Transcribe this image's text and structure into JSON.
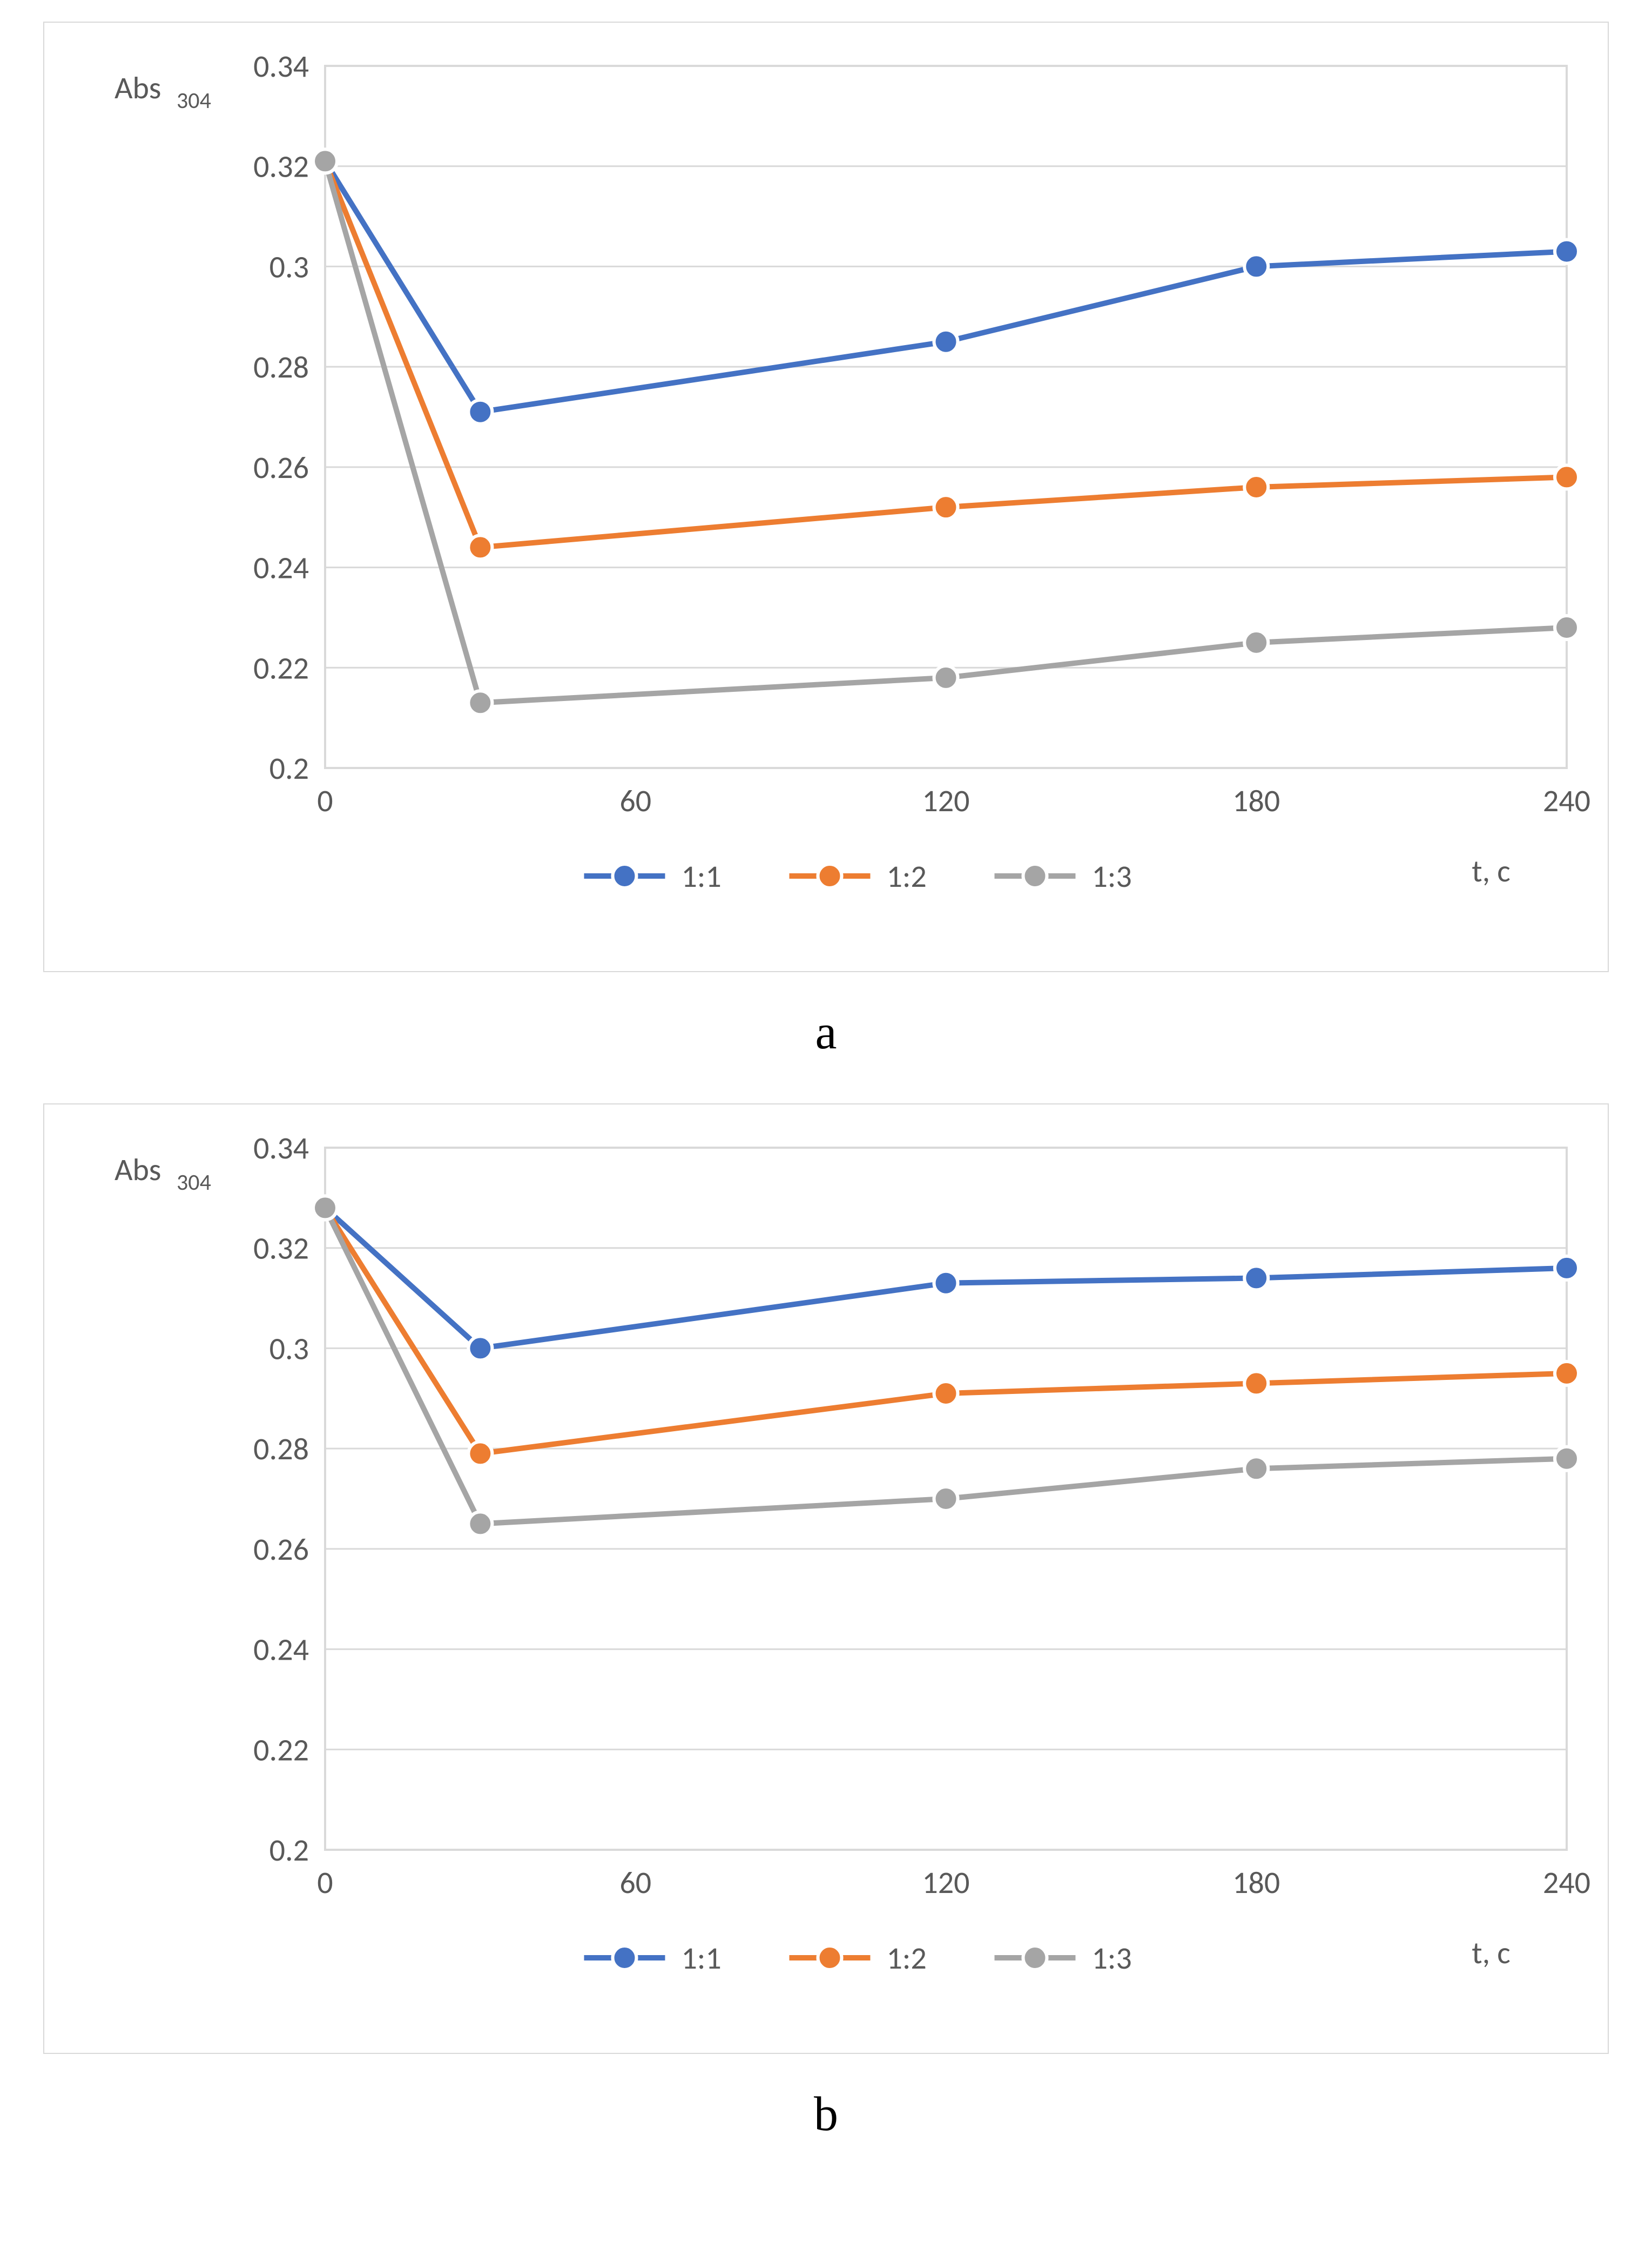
{
  "page": {
    "background_color": "#ffffff",
    "panel_border_color": "#d9d9d9",
    "text_color": "#595959",
    "grid_color": "#d9d9d9",
    "font_family": "Calibri, Arial, sans-serif",
    "panel_label_font": "Times New Roman, serif",
    "panel_label_fontsize_pt": 28
  },
  "chart_a": {
    "type": "line",
    "panel_label": "a",
    "y_axis_title": "Abs",
    "y_axis_title_sub": "304",
    "x_axis_title": "t, c",
    "xlim": [
      0,
      240
    ],
    "ylim": [
      0.2,
      0.34
    ],
    "xticks": [
      0,
      60,
      120,
      180,
      240
    ],
    "yticks": [
      0.2,
      0.22,
      0.24,
      0.26,
      0.28,
      0.3,
      0.32,
      0.34
    ],
    "xtick_labels": [
      "0",
      "60",
      "120",
      "180",
      "240"
    ],
    "ytick_labels": [
      "0.2",
      "0.22",
      "0.24",
      "0.26",
      "0.28",
      "0.3",
      "0.32",
      "0.34"
    ],
    "line_width": 10,
    "marker_radius": 22,
    "marker_stroke_width": 6,
    "marker_fill": "solid",
    "marker_shape": "circle",
    "axis_fontsize_pt": 18,
    "background_color": "#ffffff",
    "grid_color": "#d9d9d9",
    "series": [
      {
        "name": "1:1",
        "color": "#4472c4",
        "x": [
          0,
          30,
          120,
          180,
          240
        ],
        "y": [
          0.321,
          0.271,
          0.285,
          0.3,
          0.303
        ]
      },
      {
        "name": "1:2",
        "color": "#ed7d31",
        "x": [
          0,
          30,
          120,
          180,
          240
        ],
        "y": [
          0.321,
          0.244,
          0.252,
          0.256,
          0.258
        ]
      },
      {
        "name": "1:3",
        "color": "#a5a5a5",
        "x": [
          0,
          30,
          120,
          180,
          240
        ],
        "y": [
          0.321,
          0.213,
          0.218,
          0.225,
          0.228
        ]
      }
    ],
    "legend": {
      "position": "bottom",
      "items": [
        "1:1",
        "1:2",
        "1:3"
      ]
    }
  },
  "chart_b": {
    "type": "line",
    "panel_label": "b",
    "y_axis_title": "Abs",
    "y_axis_title_sub": "304",
    "x_axis_title": "t, c",
    "xlim": [
      0,
      240
    ],
    "ylim": [
      0.2,
      0.34
    ],
    "xticks": [
      0,
      60,
      120,
      180,
      240
    ],
    "yticks": [
      0.2,
      0.22,
      0.24,
      0.26,
      0.28,
      0.3,
      0.32,
      0.34
    ],
    "xtick_labels": [
      "0",
      "60",
      "120",
      "180",
      "240"
    ],
    "ytick_labels": [
      "0.2",
      "0.22",
      "0.24",
      "0.26",
      "0.28",
      "0.3",
      "0.32",
      "0.34"
    ],
    "line_width": 10,
    "marker_radius": 22,
    "marker_stroke_width": 6,
    "marker_fill": "solid",
    "marker_shape": "circle",
    "axis_fontsize_pt": 18,
    "background_color": "#ffffff",
    "grid_color": "#d9d9d9",
    "series": [
      {
        "name": "1:1",
        "color": "#4472c4",
        "x": [
          0,
          30,
          120,
          180,
          240
        ],
        "y": [
          0.328,
          0.3,
          0.313,
          0.314,
          0.316
        ]
      },
      {
        "name": "1:2",
        "color": "#ed7d31",
        "x": [
          0,
          30,
          120,
          180,
          240
        ],
        "y": [
          0.328,
          0.279,
          0.291,
          0.293,
          0.295
        ]
      },
      {
        "name": "1:3",
        "color": "#a5a5a5",
        "x": [
          0,
          30,
          120,
          180,
          240
        ],
        "y": [
          0.328,
          0.265,
          0.27,
          0.276,
          0.278
        ]
      }
    ],
    "legend": {
      "position": "bottom",
      "items": [
        "1:1",
        "1:2",
        "1:3"
      ]
    }
  }
}
